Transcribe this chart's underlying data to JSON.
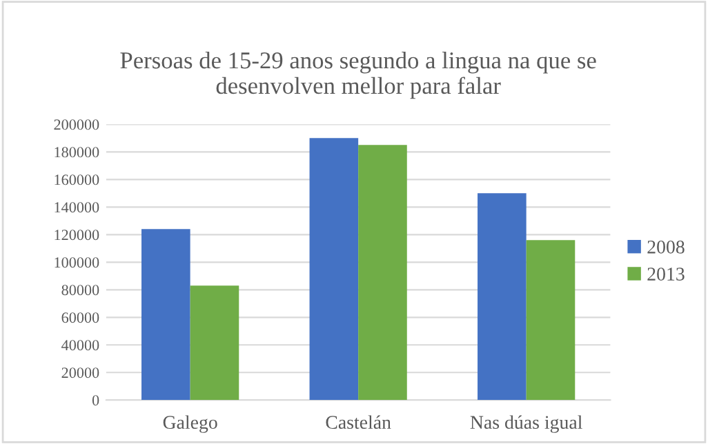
{
  "chart_data": {
    "type": "bar",
    "title": "Persoas de 15-29 anos segundo a lingua na que se\ndesenvolven mellor para falar",
    "categories": [
      "Galego",
      "Castelán",
      "Nas dúas igual"
    ],
    "series": [
      {
        "name": "2008",
        "color": "#4472c4",
        "values": [
          124000,
          190000,
          150000
        ]
      },
      {
        "name": "2013",
        "color": "#70ad47",
        "values": [
          83000,
          185000,
          116000
        ]
      }
    ],
    "ylim": [
      0,
      200000
    ],
    "yticks": [
      0,
      20000,
      40000,
      60000,
      80000,
      100000,
      120000,
      140000,
      160000,
      180000,
      200000
    ],
    "grid": "y",
    "legend": "right"
  }
}
